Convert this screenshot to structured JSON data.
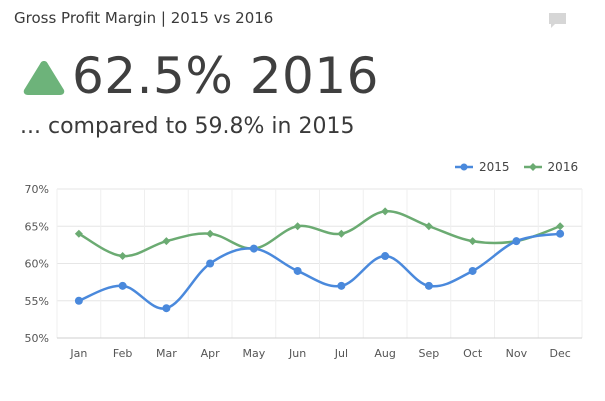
{
  "header": {
    "title": "Gross Profit Margin | 2015 vs 2016",
    "comment_icon": "comment-icon"
  },
  "kpi": {
    "trend": "up",
    "trend_icon": "triangle-up-icon",
    "trend_color": "#6db37a",
    "value_text": "62.5% 2016",
    "comparison_text": "... compared to 59.8% in 2015"
  },
  "chart_data": {
    "type": "line",
    "categories": [
      "Jan",
      "Feb",
      "Mar",
      "Apr",
      "May",
      "Jun",
      "Jul",
      "Aug",
      "Sep",
      "Oct",
      "Nov",
      "Dec"
    ],
    "series": [
      {
        "name": "2015",
        "color": "#4a89dc",
        "values": [
          55,
          57,
          54,
          60,
          62,
          59,
          57,
          61,
          57,
          59,
          63,
          64
        ]
      },
      {
        "name": "2016",
        "color": "#6bab72",
        "values": [
          64,
          61,
          63,
          64,
          62,
          65,
          64,
          67,
          65,
          63,
          63,
          65
        ]
      }
    ],
    "ylim": [
      50,
      70
    ],
    "yticks": [
      50,
      55,
      60,
      65,
      70
    ],
    "ytick_suffix": "%",
    "grid": true,
    "legend_position": "top-right",
    "xlabel": "",
    "ylabel": ""
  }
}
